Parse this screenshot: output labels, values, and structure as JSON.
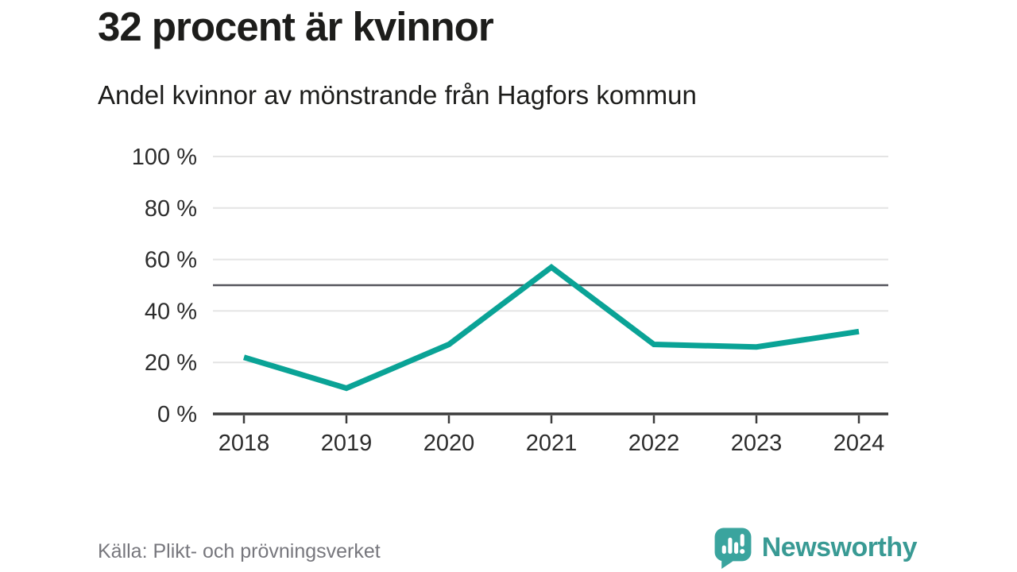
{
  "header": {
    "title": "32 procent är kvinnor",
    "subtitle": "Andel kvinnor av mönstrande från Hagfors kommun"
  },
  "footer": {
    "source": "Källa: Plikt- och prövningsverket",
    "brand": "Newsworthy"
  },
  "colors": {
    "line": "#0aa396",
    "grid": "#e4e4e4",
    "axis": "#3c3c3c",
    "reference": "#55555c",
    "label": "#2d2d2d",
    "title_text": "#1d1d1b",
    "source_text": "#77777d",
    "brand": "#399a94",
    "bubble": "#3aa49e"
  },
  "chart_data": {
    "type": "line",
    "title": "32 procent är kvinnor",
    "subtitle": "Andel kvinnor av mönstrande från Hagfors kommun",
    "x": [
      2018,
      2019,
      2020,
      2021,
      2022,
      2023,
      2024
    ],
    "series": [
      {
        "name": "Andel kvinnor av mönstrande",
        "values": [
          22,
          10,
          27,
          57,
          27,
          26,
          32
        ]
      }
    ],
    "unit": "%",
    "ylim": [
      0,
      100
    ],
    "yticks": [
      0,
      20,
      40,
      60,
      80,
      100
    ],
    "ytick_labels": [
      "0 %",
      "20 %",
      "40 %",
      "60 %",
      "80 %",
      "100 %"
    ],
    "xtick_labels": [
      "2018",
      "2019",
      "2020",
      "2021",
      "2022",
      "2023",
      "2024"
    ],
    "reference_line": 50,
    "grid": true,
    "legend": false,
    "xlabel": "",
    "ylabel": ""
  }
}
